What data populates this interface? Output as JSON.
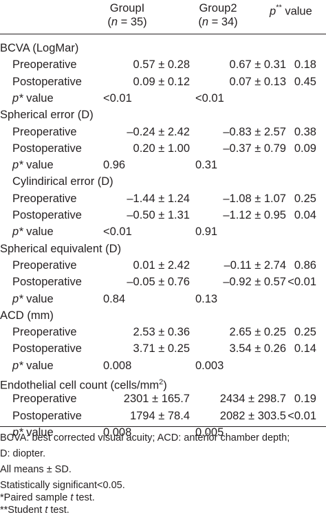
{
  "header": {
    "group1_line1": "GroupI",
    "group1_n": "35",
    "group2_line1": "Group2",
    "group2_n": "34",
    "p_label": "p",
    "p_stars": "**",
    "p_suffix": " value",
    "n_label": "n"
  },
  "rows": [
    {
      "kind": "section",
      "label": "BCVA (LogMar)"
    },
    {
      "kind": "data",
      "label": "Preoperative",
      "g1": "0.57 ± 0.28",
      "g2": "0.67 ± 0.31",
      "p": "0.18"
    },
    {
      "kind": "data",
      "label": "Postoperative",
      "g1": "0.09 ± 0.12",
      "g2": "0.07 ± 0.13",
      "p": "0.45"
    },
    {
      "kind": "pval",
      "label": "value",
      "g1": "<0.01",
      "g2": "<0.01"
    },
    {
      "kind": "section",
      "label": "Spherical error (D)"
    },
    {
      "kind": "data",
      "label": "Preoperative",
      "g1": "–0.24 ± 2.42",
      "g2": "–0.83 ± 2.57",
      "p": "0.38"
    },
    {
      "kind": "data",
      "label": "Postoperative",
      "g1": "0.20 ± 1.00",
      "g2": "–0.37 ± 0.79",
      "p": "0.09"
    },
    {
      "kind": "pval",
      "label": "value",
      "g1": "0.96",
      "g2": "0.31"
    },
    {
      "kind": "subsection",
      "label": "Cylindirical error (D)"
    },
    {
      "kind": "data",
      "label": "Preoperative",
      "g1": "–1.44 ± 1.24",
      "g2": "–1.08 ± 1.07",
      "p": "0.25"
    },
    {
      "kind": "data",
      "label": "Postoperative",
      "g1": "–0.50 ± 1.31",
      "g2": "–1.12 ± 0.95",
      "p": "0.04"
    },
    {
      "kind": "pval",
      "label": "value",
      "g1": "<0.01",
      "g2": "0.91"
    },
    {
      "kind": "section",
      "label": "Spherical equivalent (D)"
    },
    {
      "kind": "data",
      "label": "Preoperative",
      "g1": "0.01 ± 2.42",
      "g2": "–0.11 ± 2.74",
      "p": "0.86"
    },
    {
      "kind": "data",
      "label": "Postoperative",
      "g1": "–0.05 ± 0.76",
      "g2": "–0.92 ± 0.57",
      "p": "<0.01"
    },
    {
      "kind": "pval",
      "label": "value",
      "g1": "0.84",
      "g2": "0.13"
    },
    {
      "kind": "section",
      "label": "ACD (mm)"
    },
    {
      "kind": "data",
      "label": "Preoperative",
      "g1": "2.53 ± 0.36",
      "g2": "2.65 ± 0.25",
      "p": "0.25"
    },
    {
      "kind": "data",
      "label": "Postoperative",
      "g1": "3.71 ± 0.25",
      "g2": "3.54 ± 0.26",
      "p": "0.14"
    },
    {
      "kind": "pval",
      "label": "value",
      "g1": "0.008",
      "g2": "0.003"
    },
    {
      "kind": "section",
      "label": "Endothelial cell count (cells/mm",
      "sup": "2",
      "after": ")"
    },
    {
      "kind": "data",
      "label": "Preoperative",
      "g1": "2301 ± 165.7",
      "g2": "2434 ± 298.7",
      "p": "0.19"
    },
    {
      "kind": "data",
      "label": "Postoperative",
      "g1": "1794 ± 78.4",
      "g2": "2082 ± 303.5",
      "p": "<0.01"
    },
    {
      "kind": "pval",
      "label": "value",
      "g1": "0.008",
      "g2": "0.005"
    }
  ],
  "footnotes": {
    "abbr1": "BCVA: best corrected visual acuity; ACD: anterior chamber depth;",
    "abbr2": "D: diopter.",
    "means": "All means ± SD.",
    "sig": "Statistically significant<0.05.",
    "paired_pre": "*Paired sample ",
    "paired_t": "t",
    "paired_post": " test.",
    "student_pre": "**Student ",
    "student_t": "t",
    "student_post": " test."
  },
  "p_star": "p*"
}
